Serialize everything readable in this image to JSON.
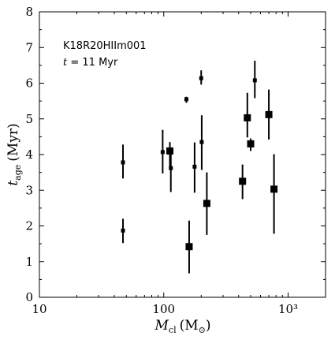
{
  "chart_data": {
    "type": "scatter",
    "title": "",
    "xlabel": "M_cl (M_☉)",
    "xlabel_main": "M",
    "xlabel_sub": "cl",
    "xlabel_unit_open": "(M",
    "xlabel_unit_sub": "⊙",
    "xlabel_unit_close": ")",
    "ylabel": "t_age (Myr)",
    "ylabel_main": "t",
    "ylabel_sub": "age",
    "ylabel_unit": "(Myr)",
    "xscale": "log",
    "xlim": [
      10,
      2000
    ],
    "ylim": [
      0,
      8
    ],
    "xticks": [
      10,
      100,
      1000
    ],
    "xtick_labels": [
      "10",
      "100",
      "10³"
    ],
    "yticks": [
      0,
      1,
      2,
      3,
      4,
      5,
      6,
      7,
      8
    ],
    "ytick_labels": [
      "0",
      "1",
      "2",
      "3",
      "4",
      "5",
      "6",
      "7",
      "8"
    ],
    "grid": false,
    "annotations": {
      "run_name": "K18R20HIIm001",
      "time_prefix": "t",
      "time_value": " = 11 Myr"
    },
    "points": [
      {
        "x": 47,
        "y": 3.78,
        "err_lo": 0.45,
        "err_hi": 0.5,
        "size": "small"
      },
      {
        "x": 47,
        "y": 1.87,
        "err_lo": 0.35,
        "err_hi": 0.33,
        "size": "small"
      },
      {
        "x": 98,
        "y": 4.07,
        "err_lo": 0.6,
        "err_hi": 0.62,
        "size": "small"
      },
      {
        "x": 112,
        "y": 4.1,
        "err_lo": 0.45,
        "err_hi": 0.25,
        "size": "large"
      },
      {
        "x": 114,
        "y": 3.62,
        "err_lo": 0.67,
        "err_hi": 0.4,
        "size": "small"
      },
      {
        "x": 152,
        "y": 5.55,
        "err_lo": 0.1,
        "err_hi": 0.07,
        "size": "small"
      },
      {
        "x": 160,
        "y": 1.42,
        "err_lo": 0.75,
        "err_hi": 0.73,
        "size": "large"
      },
      {
        "x": 177,
        "y": 3.66,
        "err_lo": 0.73,
        "err_hi": 0.68,
        "size": "small"
      },
      {
        "x": 200,
        "y": 6.14,
        "err_lo": 0.18,
        "err_hi": 0.22,
        "size": "small"
      },
      {
        "x": 202,
        "y": 4.35,
        "err_lo": 0.78,
        "err_hi": 0.75,
        "size": "small"
      },
      {
        "x": 222,
        "y": 2.63,
        "err_lo": 0.88,
        "err_hi": 0.87,
        "size": "large"
      },
      {
        "x": 430,
        "y": 3.25,
        "err_lo": 0.5,
        "err_hi": 0.47,
        "size": "large"
      },
      {
        "x": 470,
        "y": 5.03,
        "err_lo": 0.55,
        "err_hi": 0.7,
        "size": "large"
      },
      {
        "x": 500,
        "y": 4.3,
        "err_lo": 0.2,
        "err_hi": 0.15,
        "size": "large"
      },
      {
        "x": 540,
        "y": 6.08,
        "err_lo": 0.5,
        "err_hi": 0.55,
        "size": "small"
      },
      {
        "x": 700,
        "y": 5.12,
        "err_lo": 0.7,
        "err_hi": 0.7,
        "size": "large"
      },
      {
        "x": 770,
        "y": 3.03,
        "err_lo": 1.25,
        "err_hi": 0.98,
        "size": "large"
      }
    ]
  }
}
